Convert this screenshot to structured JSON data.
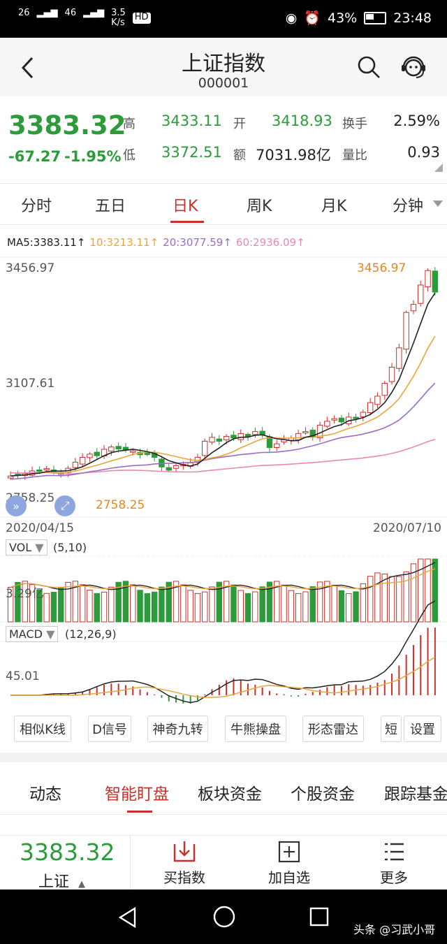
{
  "status_bar": {
    "signal_1": "26",
    "signal_2": "46",
    "speed": "3.5",
    "speed_unit": "K/s",
    "hd": "HD",
    "battery": "43%",
    "time": "23:48"
  },
  "header": {
    "title": "上证指数",
    "code": "000001"
  },
  "quote": {
    "price": "3383.32",
    "change": "-67.27",
    "change_pct": "-1.95%",
    "high_label": "高",
    "high": "3433.11",
    "open_label": "开",
    "open": "3418.93",
    "turnover_label": "换手",
    "turnover": "2.59%",
    "low_label": "低",
    "low": "3372.51",
    "amount_label": "额",
    "amount": "7031.98亿",
    "volume_ratio_label": "量比",
    "volume_ratio": "0.93",
    "colors": {
      "down": "#2d9b3b",
      "up": "#c9302c"
    }
  },
  "tabs": [
    {
      "label": "分时"
    },
    {
      "label": "五日"
    },
    {
      "label": "日K",
      "active": true
    },
    {
      "label": "周K"
    },
    {
      "label": "月K"
    },
    {
      "label": "分钟"
    }
  ],
  "ma_legend": {
    "ma5": "MA5:3383.11↑",
    "ma10": "10:3213.11↑",
    "ma20": "20:3077.59↑",
    "ma60": "60:2936.09↑",
    "colors": {
      "ma5": "#222222",
      "ma10": "#e8a63a",
      "ma20": "#9b6dc6",
      "ma60": "#e889b4"
    }
  },
  "chart_data": {
    "type": "candlestick",
    "price_axis": {
      "top_label": "3456.97",
      "mid_label": "3107.61",
      "bottom_label": "2758.25"
    },
    "max_marker": "3456.97",
    "min_marker": "2758.25",
    "date_start": "2020/04/15",
    "date_end": "2020/07/10",
    "closes_estimated": [
      2812,
      2815,
      2820,
      2828,
      2830,
      2835,
      2825,
      2818,
      2836,
      2855,
      2870,
      2880,
      2875,
      2895,
      2902,
      2896,
      2893,
      2890,
      2878,
      2880,
      2870,
      2840,
      2830,
      2844,
      2848,
      2853,
      2870,
      2920,
      2932,
      2920,
      2935,
      2930,
      2944,
      2935,
      2950,
      2940,
      2900,
      2912,
      2925,
      2930,
      2944,
      2950,
      2935,
      2970,
      2982,
      2990,
      2980,
      2995,
      2990,
      3010,
      3040,
      3060,
      3100,
      3150,
      3210,
      3320,
      3345,
      3405,
      3450,
      3383
    ],
    "volume": {
      "label": "VOL",
      "params": "(5,10)",
      "level_label": "3.29亿"
    },
    "macd": {
      "label": "MACD",
      "params": "(12,26,9)",
      "level_label": "45.01"
    }
  },
  "chart_tools": [
    {
      "label": "相似K线"
    },
    {
      "label": "D信号"
    },
    {
      "label": "神奇九转"
    },
    {
      "label": "牛熊操盘"
    },
    {
      "label": "形态雷达"
    },
    {
      "label": "短"
    },
    {
      "label": "设置"
    }
  ],
  "lower_tabs": [
    {
      "label": "动态"
    },
    {
      "label": "智能盯盘",
      "active": true
    },
    {
      "label": "板块资金"
    },
    {
      "label": "个股资金"
    },
    {
      "label": "跟踪基金"
    }
  ],
  "bottom_bar": {
    "price": "3383.32",
    "name": "上证",
    "buy_label": "买指数",
    "add_label": "加自选",
    "more_label": "更多"
  },
  "watermark": "头条 @习武小哥"
}
